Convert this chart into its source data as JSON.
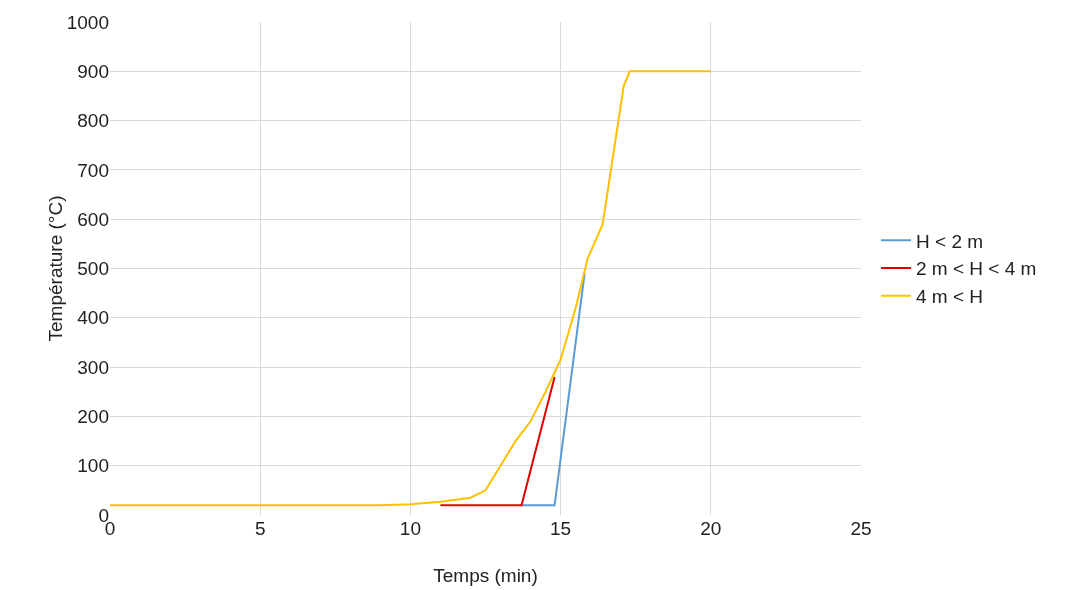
{
  "chart_data": {
    "type": "line",
    "xlabel": "Temps (min)",
    "ylabel": "Température (°C)",
    "xlim": [
      0,
      25
    ],
    "xticks": [
      0,
      5,
      10,
      15,
      20,
      25
    ],
    "ylim": [
      0,
      1000
    ],
    "yticks": [
      0,
      100,
      200,
      300,
      400,
      500,
      600,
      700,
      800,
      900,
      1000
    ],
    "grid": true,
    "legend": "right",
    "marker": "none",
    "line_style": "solid",
    "series": [
      {
        "name": "H < 2 m",
        "color": "#5b9bd5",
        "x": [
          13.7,
          14.8,
          15.8
        ],
        "values": [
          20,
          20,
          490
        ]
      },
      {
        "name": "2 m < H < 4 m",
        "color": "#e00000",
        "x": [
          11,
          13.7,
          14.8
        ],
        "values": [
          20,
          20,
          280
        ]
      },
      {
        "name": "4 m < H",
        "color": "#ffc000",
        "x": [
          0,
          9,
          10,
          11,
          12,
          12.5,
          13,
          13.5,
          14,
          14.5,
          15,
          15.5,
          15.9,
          16.4,
          17.1,
          17.3,
          20
        ],
        "values": [
          20,
          20,
          22,
          27,
          35,
          50,
          100,
          150,
          190,
          250,
          315,
          420,
          520,
          590,
          870,
          900,
          900
        ]
      }
    ]
  }
}
